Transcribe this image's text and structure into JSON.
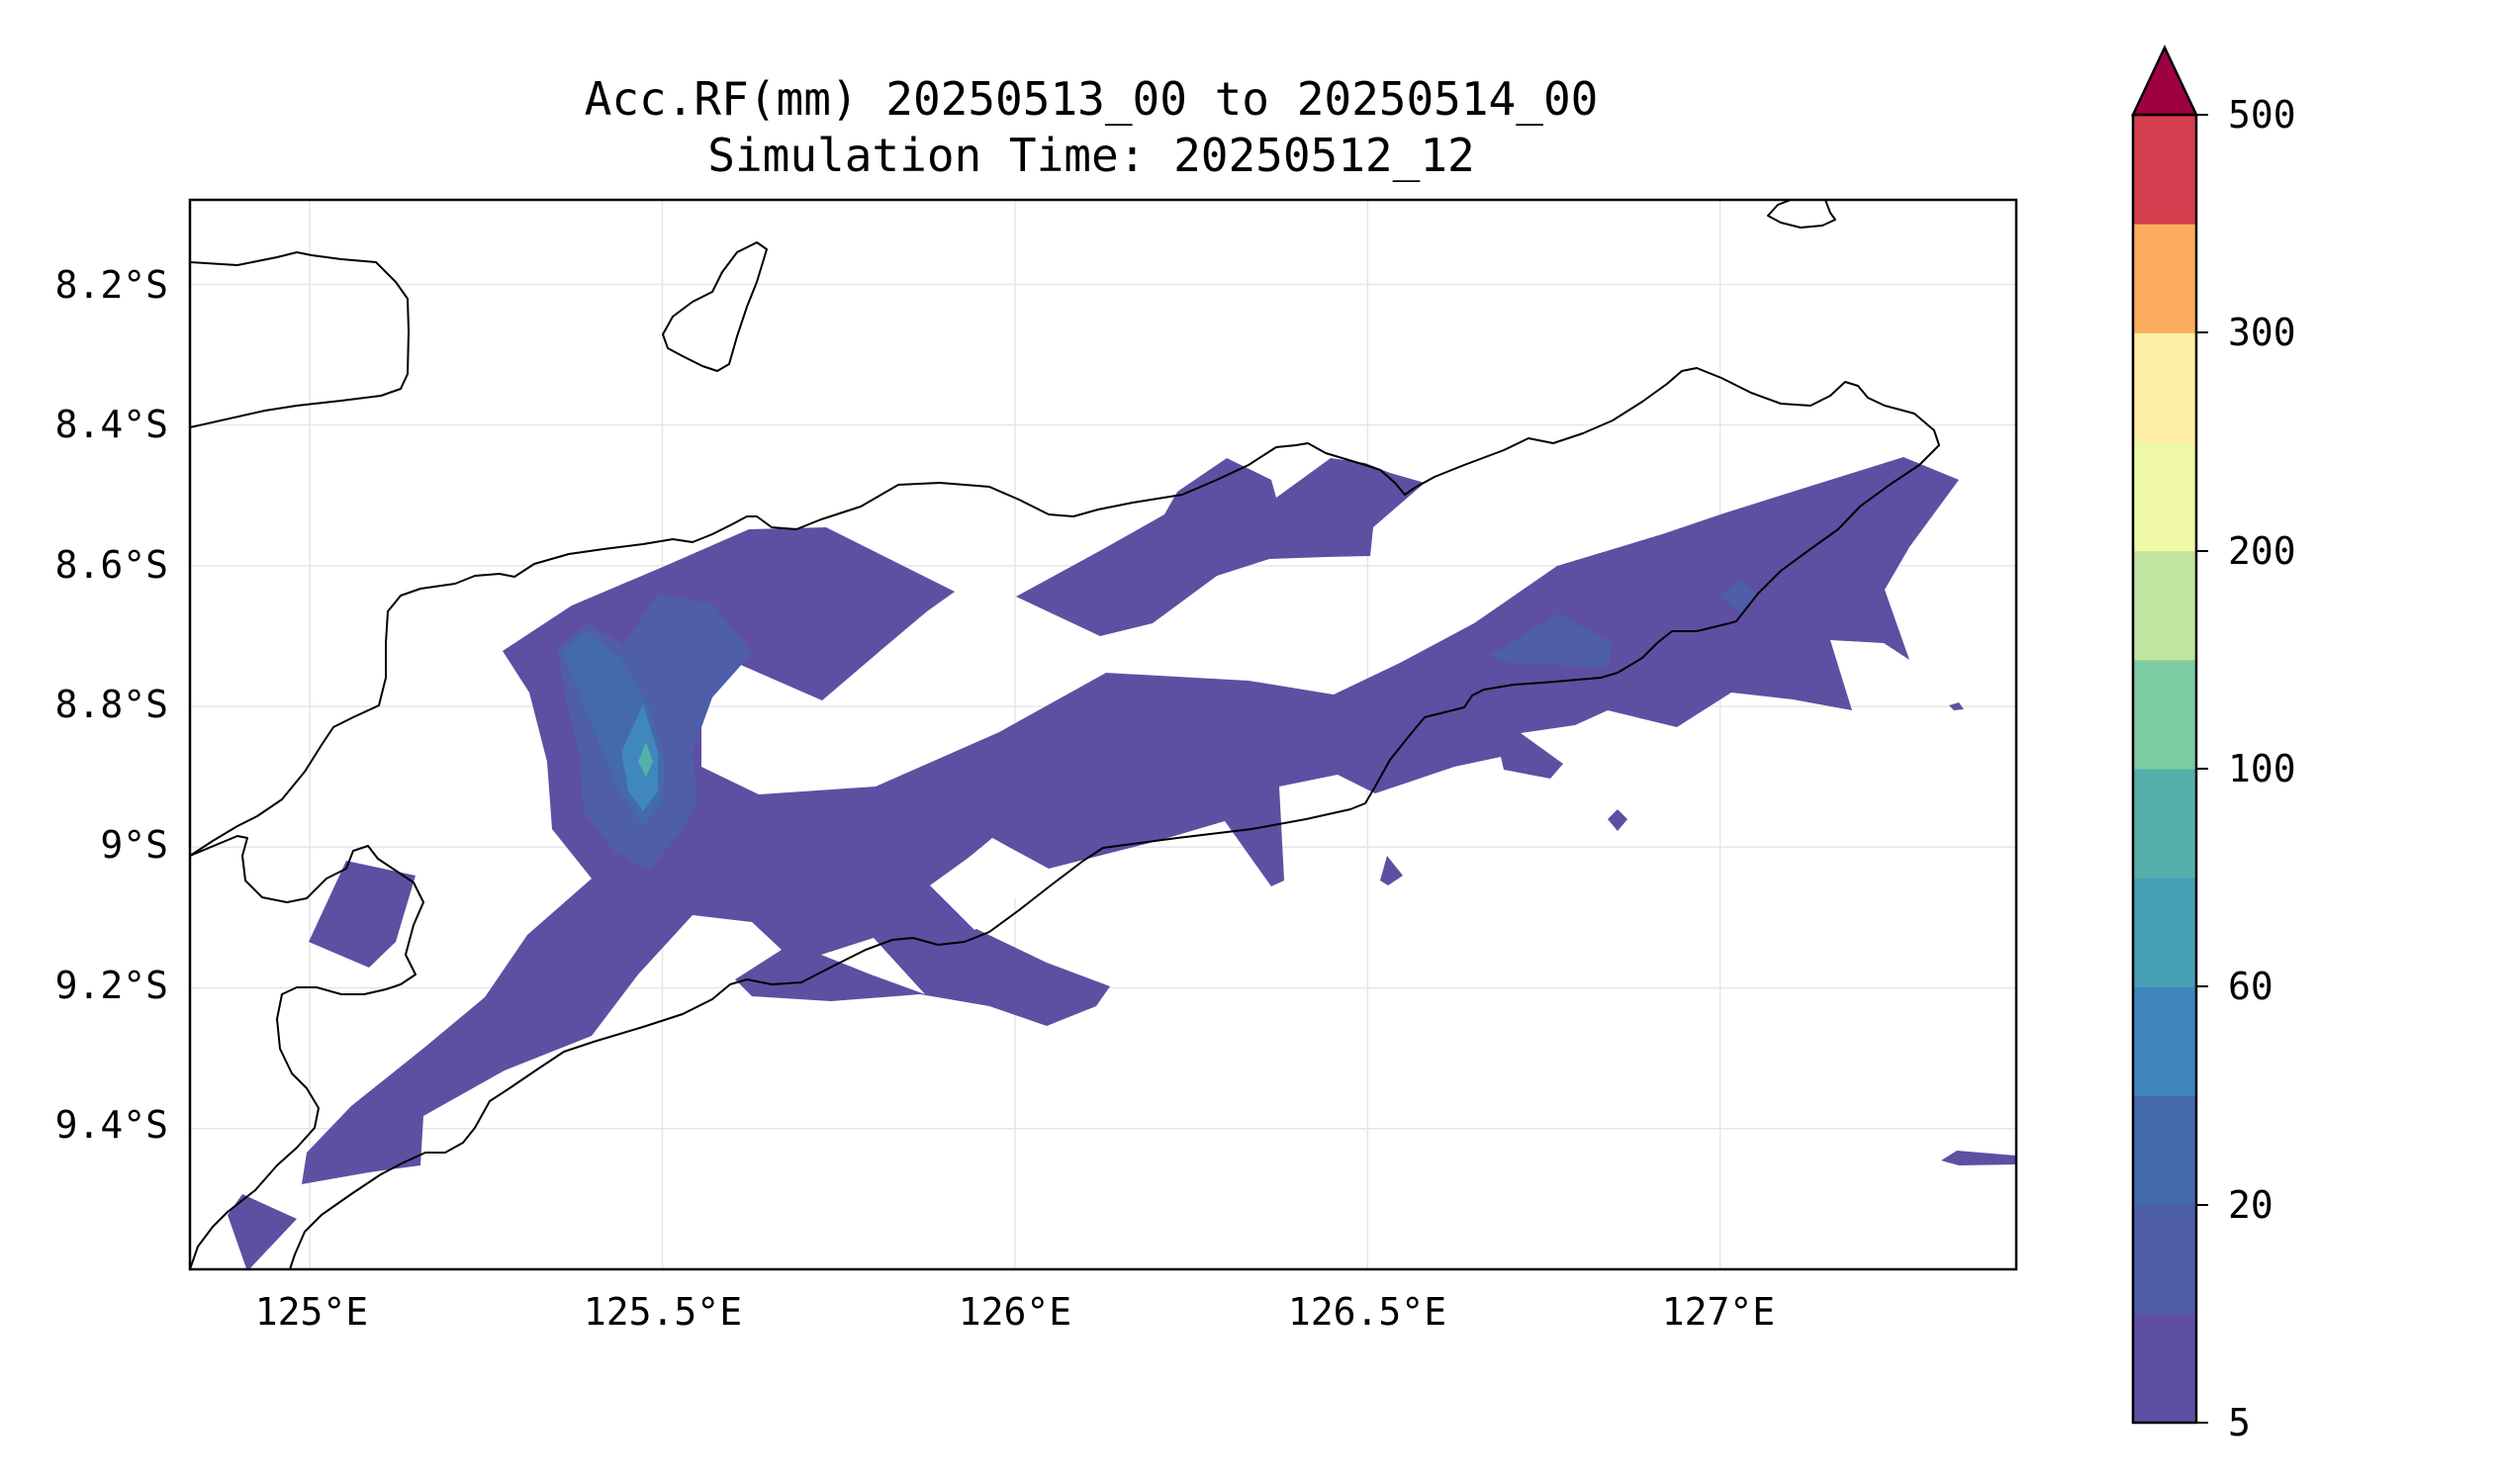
{
  "title": {
    "line1": "Acc.RF(mm) 20250513_00 to 20250514_00",
    "line2": "Simulation Time: 20250512_12"
  },
  "map": {
    "lon_range": [
      124.83,
      127.42
    ],
    "lat_range": [
      -9.6,
      -8.08
    ],
    "lon_ticks": [
      {
        "value": 125.0,
        "label": "125°E"
      },
      {
        "value": 125.5,
        "label": "125.5°E"
      },
      {
        "value": 126.0,
        "label": "126°E"
      },
      {
        "value": 126.5,
        "label": "126.5°E"
      },
      {
        "value": 127.0,
        "label": "127°E"
      }
    ],
    "lat_ticks": [
      {
        "value": -8.2,
        "label": "8.2°S"
      },
      {
        "value": -8.4,
        "label": "8.4°S"
      },
      {
        "value": -8.6,
        "label": "8.6°S"
      },
      {
        "value": -8.8,
        "label": "8.8°S"
      },
      {
        "value": -9.0,
        "label": "9°S"
      },
      {
        "value": -9.2,
        "label": "9.2°S"
      },
      {
        "value": -9.4,
        "label": "9.4°S"
      }
    ],
    "gridlines": true,
    "coastline_color": "#000000"
  },
  "colorbar": {
    "extend": "max",
    "extend_color": "#9e0142",
    "levels": [
      5,
      10,
      20,
      40,
      60,
      80,
      100,
      150,
      200,
      250,
      300,
      400,
      500
    ],
    "colors": [
      "#5e4fa2",
      "#4e5ea9",
      "#4469ad",
      "#3e86bc",
      "#469fb3",
      "#55b0ab",
      "#7ccba3",
      "#c1e4a1",
      "#eff8a6",
      "#fdeea4",
      "#fcad60",
      "#d53e4f"
    ],
    "tick_labels": [
      {
        "level": 5,
        "label": "5"
      },
      {
        "level": 20,
        "label": "20"
      },
      {
        "level": 60,
        "label": "60"
      },
      {
        "level": 100,
        "label": "100"
      },
      {
        "level": 200,
        "label": "200"
      },
      {
        "level": 300,
        "label": "300"
      },
      {
        "level": 500,
        "label": "500"
      }
    ]
  }
}
